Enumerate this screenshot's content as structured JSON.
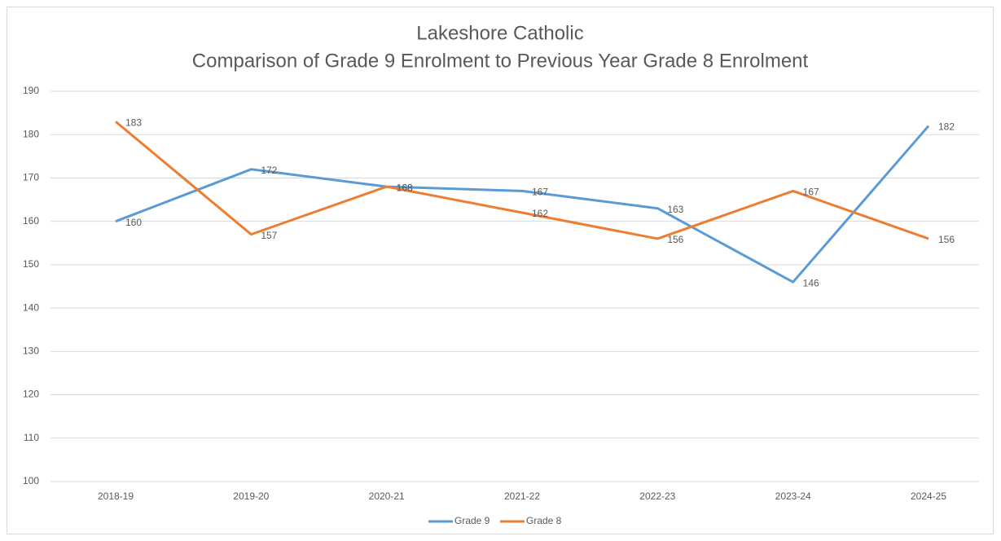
{
  "chart_data": {
    "type": "line",
    "title": "Lakeshore Catholic",
    "subtitle": "Comparison of Grade 9 Enrolment to Previous Year Grade 8 Enrolment",
    "categories": [
      "2018-19",
      "2019-20",
      "2020-21",
      "2021-22",
      "2022-23",
      "2023-24",
      "2024-25"
    ],
    "series": [
      {
        "name": "Grade 9",
        "color": "#5b9bd5",
        "values": [
          160,
          172,
          168,
          167,
          163,
          146,
          182
        ]
      },
      {
        "name": "Grade 8",
        "color": "#ed7d31",
        "values": [
          183,
          157,
          168,
          162,
          156,
          167,
          156
        ]
      }
    ],
    "ylim": [
      100,
      190
    ],
    "yticks": [
      100,
      110,
      120,
      130,
      140,
      150,
      160,
      170,
      180,
      190
    ],
    "grid": true,
    "legend": "bottom",
    "data_labels": true
  }
}
